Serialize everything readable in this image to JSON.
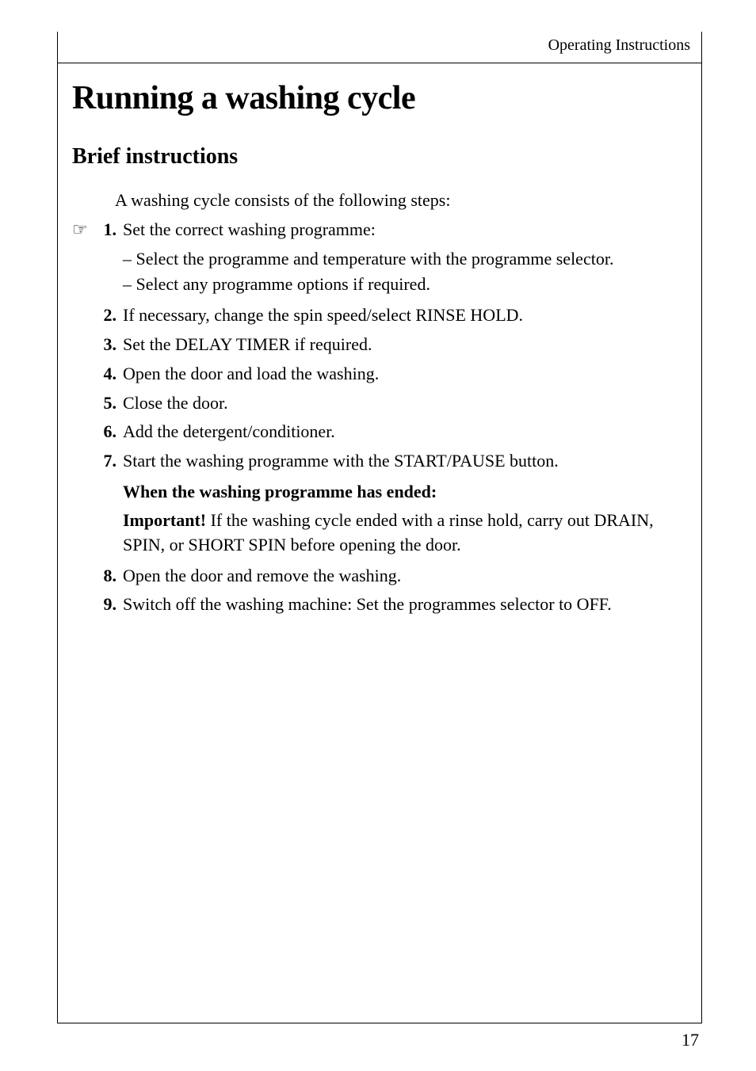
{
  "header": {
    "section_label": "Operating Instructions"
  },
  "titles": {
    "main": "Running a washing cycle",
    "sub": "Brief instructions"
  },
  "intro": "A washing cycle consists of the following steps:",
  "hand_icon": "☞",
  "steps": [
    {
      "num": "1.",
      "text": "Set the correct washing programme:",
      "has_hand": true,
      "sub": [
        "– Select the programme and temperature with the programme selector.",
        "– Select any programme options if required."
      ]
    },
    {
      "num": "2.",
      "text": "If necessary, change the spin speed/select RINSE HOLD.",
      "has_hand": false
    },
    {
      "num": "3.",
      "text": "Set the DELAY TIMER if required.",
      "has_hand": false
    },
    {
      "num": "4.",
      "text": "Open the door and load the washing.",
      "has_hand": false
    },
    {
      "num": "5.",
      "text": "Close the door.",
      "has_hand": false
    },
    {
      "num": "6.",
      "text": "Add the detergent/conditioner.",
      "has_hand": false
    },
    {
      "num": "7.",
      "text": "Start the washing programme with the START/PAUSE button.",
      "has_hand": false
    }
  ],
  "ended_heading": "When the washing programme has ended:",
  "important": {
    "label": "Important!",
    "text": " If the washing cycle ended with a rinse hold, carry out DRAIN, SPIN, or SHORT SPIN before opening the door."
  },
  "steps_after": [
    {
      "num": "8.",
      "text": "Open the door and remove the washing."
    },
    {
      "num": "9.",
      "text": "Switch off the washing machine: Set the programmes selector to OFF."
    }
  ],
  "page_number": "17",
  "colors": {
    "background": "#ffffff",
    "text": "#000000",
    "border": "#000000"
  },
  "typography": {
    "main_title_size": 42,
    "sub_title_size": 28,
    "body_size": 22,
    "header_size": 20
  }
}
